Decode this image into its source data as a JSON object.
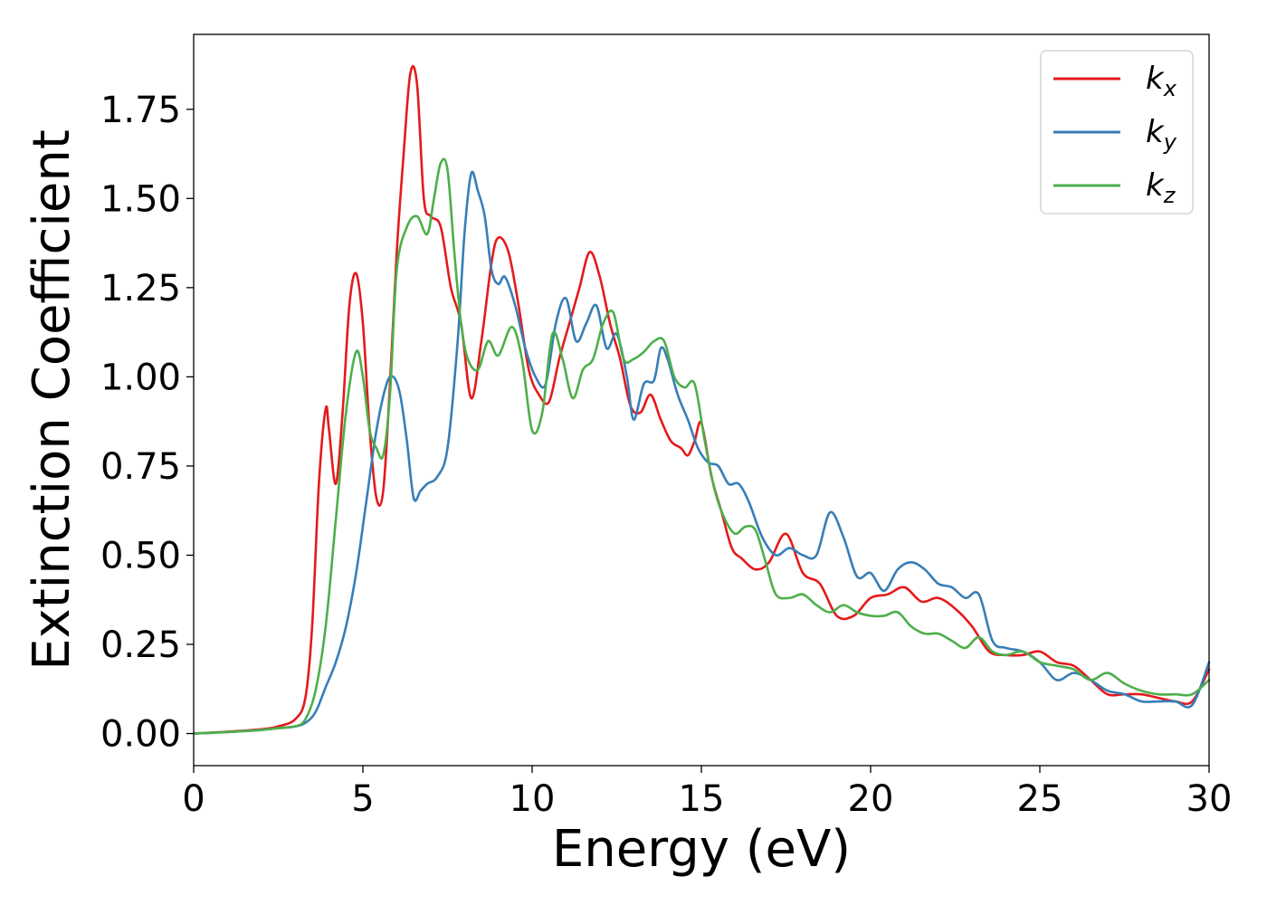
{
  "chart_data": {
    "type": "line",
    "xlabel": "Energy (eV)",
    "ylabel": "Extinction Coefficient",
    "xlim": [
      0,
      30
    ],
    "ylim": [
      -0.09,
      1.96
    ],
    "xticks": [
      0,
      5,
      10,
      15,
      20,
      25,
      30
    ],
    "xtick_labels": [
      "0",
      "5",
      "10",
      "15",
      "20",
      "25",
      "30"
    ],
    "yticks": [
      0.0,
      0.25,
      0.5,
      0.75,
      1.0,
      1.25,
      1.5,
      1.75
    ],
    "ytick_labels": [
      "0.00",
      "0.25",
      "0.50",
      "0.75",
      "1.00",
      "1.25",
      "1.50",
      "1.75"
    ],
    "grid": false,
    "legend_position": "top-right",
    "series": [
      {
        "name": "k_x",
        "legend_base": "k",
        "legend_sub": "x",
        "color": "#e41a1c",
        "x": [
          0,
          1,
          2,
          2.5,
          3.0,
          3.3,
          3.5,
          3.7,
          3.9,
          4.0,
          4.2,
          4.4,
          4.6,
          4.8,
          5.0,
          5.2,
          5.4,
          5.6,
          5.8,
          6.0,
          6.2,
          6.4,
          6.6,
          6.8,
          7.0,
          7.3,
          7.6,
          7.9,
          8.2,
          8.5,
          8.8,
          9.0,
          9.3,
          9.6,
          9.9,
          10.2,
          10.5,
          10.8,
          11.1,
          11.4,
          11.7,
          12.0,
          12.3,
          12.6,
          12.9,
          13.2,
          13.5,
          13.8,
          14.1,
          14.4,
          14.6,
          14.8,
          15.0,
          15.3,
          15.6,
          15.9,
          16.2,
          16.6,
          17.0,
          17.5,
          18.0,
          18.5,
          19.0,
          19.5,
          20.0,
          20.5,
          21.0,
          21.5,
          22.0,
          22.5,
          23.0,
          23.5,
          24.0,
          24.5,
          25.0,
          25.5,
          26.0,
          26.5,
          27.0,
          27.5,
          28.0,
          28.5,
          29.0,
          29.5,
          30.0
        ],
        "values": [
          0.0,
          0.005,
          0.012,
          0.02,
          0.04,
          0.1,
          0.3,
          0.7,
          0.91,
          0.85,
          0.7,
          0.9,
          1.2,
          1.29,
          1.15,
          0.85,
          0.66,
          0.68,
          0.98,
          1.35,
          1.62,
          1.85,
          1.82,
          1.5,
          1.45,
          1.42,
          1.25,
          1.15,
          0.94,
          1.1,
          1.32,
          1.39,
          1.35,
          1.2,
          1.02,
          0.95,
          0.93,
          1.05,
          1.15,
          1.25,
          1.35,
          1.28,
          1.15,
          1.05,
          0.92,
          0.9,
          0.95,
          0.88,
          0.82,
          0.8,
          0.78,
          0.82,
          0.87,
          0.72,
          0.62,
          0.52,
          0.49,
          0.46,
          0.48,
          0.56,
          0.45,
          0.42,
          0.33,
          0.33,
          0.38,
          0.39,
          0.41,
          0.37,
          0.38,
          0.35,
          0.3,
          0.23,
          0.22,
          0.22,
          0.23,
          0.2,
          0.19,
          0.15,
          0.11,
          0.11,
          0.11,
          0.1,
          0.09,
          0.09,
          0.18
        ]
      },
      {
        "name": "k_y",
        "legend_base": "k",
        "legend_sub": "y",
        "color": "#377eb8",
        "x": [
          0,
          1,
          2,
          2.5,
          3.0,
          3.3,
          3.6,
          3.9,
          4.2,
          4.5,
          4.8,
          5.1,
          5.4,
          5.7,
          5.9,
          6.1,
          6.3,
          6.5,
          6.7,
          6.9,
          7.2,
          7.5,
          7.8,
          8.0,
          8.2,
          8.4,
          8.6,
          8.8,
          9.0,
          9.2,
          9.5,
          9.8,
          10.1,
          10.4,
          10.7,
          11.0,
          11.3,
          11.6,
          11.9,
          12.2,
          12.5,
          12.8,
          13.0,
          13.3,
          13.6,
          13.8,
          14.0,
          14.3,
          14.6,
          14.9,
          15.2,
          15.5,
          15.8,
          16.1,
          16.4,
          16.8,
          17.2,
          17.6,
          18.0,
          18.4,
          18.8,
          19.2,
          19.6,
          20.0,
          20.4,
          20.8,
          21.2,
          21.6,
          22.0,
          22.4,
          22.8,
          23.2,
          23.6,
          24.0,
          24.5,
          25.0,
          25.5,
          26.0,
          26.5,
          27.0,
          27.5,
          28.0,
          28.5,
          29.0,
          29.5,
          30.0
        ],
        "values": [
          0.0,
          0.004,
          0.01,
          0.015,
          0.02,
          0.03,
          0.06,
          0.13,
          0.2,
          0.3,
          0.45,
          0.65,
          0.85,
          0.98,
          1.0,
          0.95,
          0.82,
          0.66,
          0.68,
          0.7,
          0.72,
          0.8,
          1.1,
          1.4,
          1.57,
          1.52,
          1.45,
          1.3,
          1.26,
          1.28,
          1.2,
          1.08,
          1.0,
          0.98,
          1.15,
          1.22,
          1.1,
          1.15,
          1.2,
          1.08,
          1.12,
          1.0,
          0.88,
          0.98,
          0.99,
          1.08,
          1.05,
          0.95,
          0.88,
          0.8,
          0.76,
          0.75,
          0.7,
          0.7,
          0.65,
          0.55,
          0.5,
          0.52,
          0.5,
          0.5,
          0.62,
          0.55,
          0.44,
          0.45,
          0.4,
          0.46,
          0.48,
          0.46,
          0.42,
          0.41,
          0.38,
          0.39,
          0.26,
          0.24,
          0.23,
          0.2,
          0.15,
          0.17,
          0.15,
          0.12,
          0.11,
          0.09,
          0.09,
          0.09,
          0.08,
          0.2
        ]
      },
      {
        "name": "k_z",
        "legend_base": "k",
        "legend_sub": "z",
        "color": "#4daf4a",
        "x": [
          0,
          1,
          2,
          2.5,
          3.0,
          3.3,
          3.6,
          3.9,
          4.2,
          4.5,
          4.8,
          5.0,
          5.2,
          5.4,
          5.6,
          5.8,
          6.0,
          6.3,
          6.6,
          6.9,
          7.1,
          7.3,
          7.5,
          7.7,
          7.9,
          8.1,
          8.4,
          8.7,
          9.0,
          9.4,
          9.7,
          10.0,
          10.3,
          10.6,
          10.9,
          11.2,
          11.5,
          11.8,
          12.1,
          12.4,
          12.7,
          13.0,
          13.3,
          13.6,
          13.9,
          14.2,
          14.5,
          14.8,
          15.1,
          15.4,
          15.7,
          16.0,
          16.3,
          16.6,
          16.9,
          17.2,
          17.6,
          18.0,
          18.4,
          18.8,
          19.2,
          19.6,
          20.0,
          20.4,
          20.8,
          21.2,
          21.6,
          22.0,
          22.4,
          22.8,
          23.2,
          23.6,
          24.0,
          24.5,
          25.0,
          25.5,
          26.0,
          26.5,
          27.0,
          27.5,
          28.0,
          28.5,
          29.0,
          29.5,
          30.0
        ],
        "values": [
          0.0,
          0.004,
          0.01,
          0.015,
          0.02,
          0.04,
          0.12,
          0.3,
          0.6,
          0.9,
          1.07,
          1.0,
          0.85,
          0.8,
          0.78,
          0.95,
          1.3,
          1.42,
          1.45,
          1.4,
          1.5,
          1.6,
          1.58,
          1.35,
          1.15,
          1.05,
          1.02,
          1.1,
          1.06,
          1.14,
          1.05,
          0.85,
          0.9,
          1.12,
          1.05,
          0.94,
          1.02,
          1.05,
          1.15,
          1.18,
          1.05,
          1.05,
          1.07,
          1.1,
          1.1,
          1.0,
          0.97,
          0.98,
          0.82,
          0.68,
          0.6,
          0.56,
          0.58,
          0.57,
          0.48,
          0.39,
          0.38,
          0.39,
          0.36,
          0.34,
          0.36,
          0.34,
          0.33,
          0.33,
          0.34,
          0.3,
          0.28,
          0.28,
          0.26,
          0.24,
          0.27,
          0.23,
          0.22,
          0.23,
          0.2,
          0.19,
          0.18,
          0.15,
          0.17,
          0.14,
          0.12,
          0.11,
          0.11,
          0.11,
          0.15
        ]
      }
    ]
  }
}
